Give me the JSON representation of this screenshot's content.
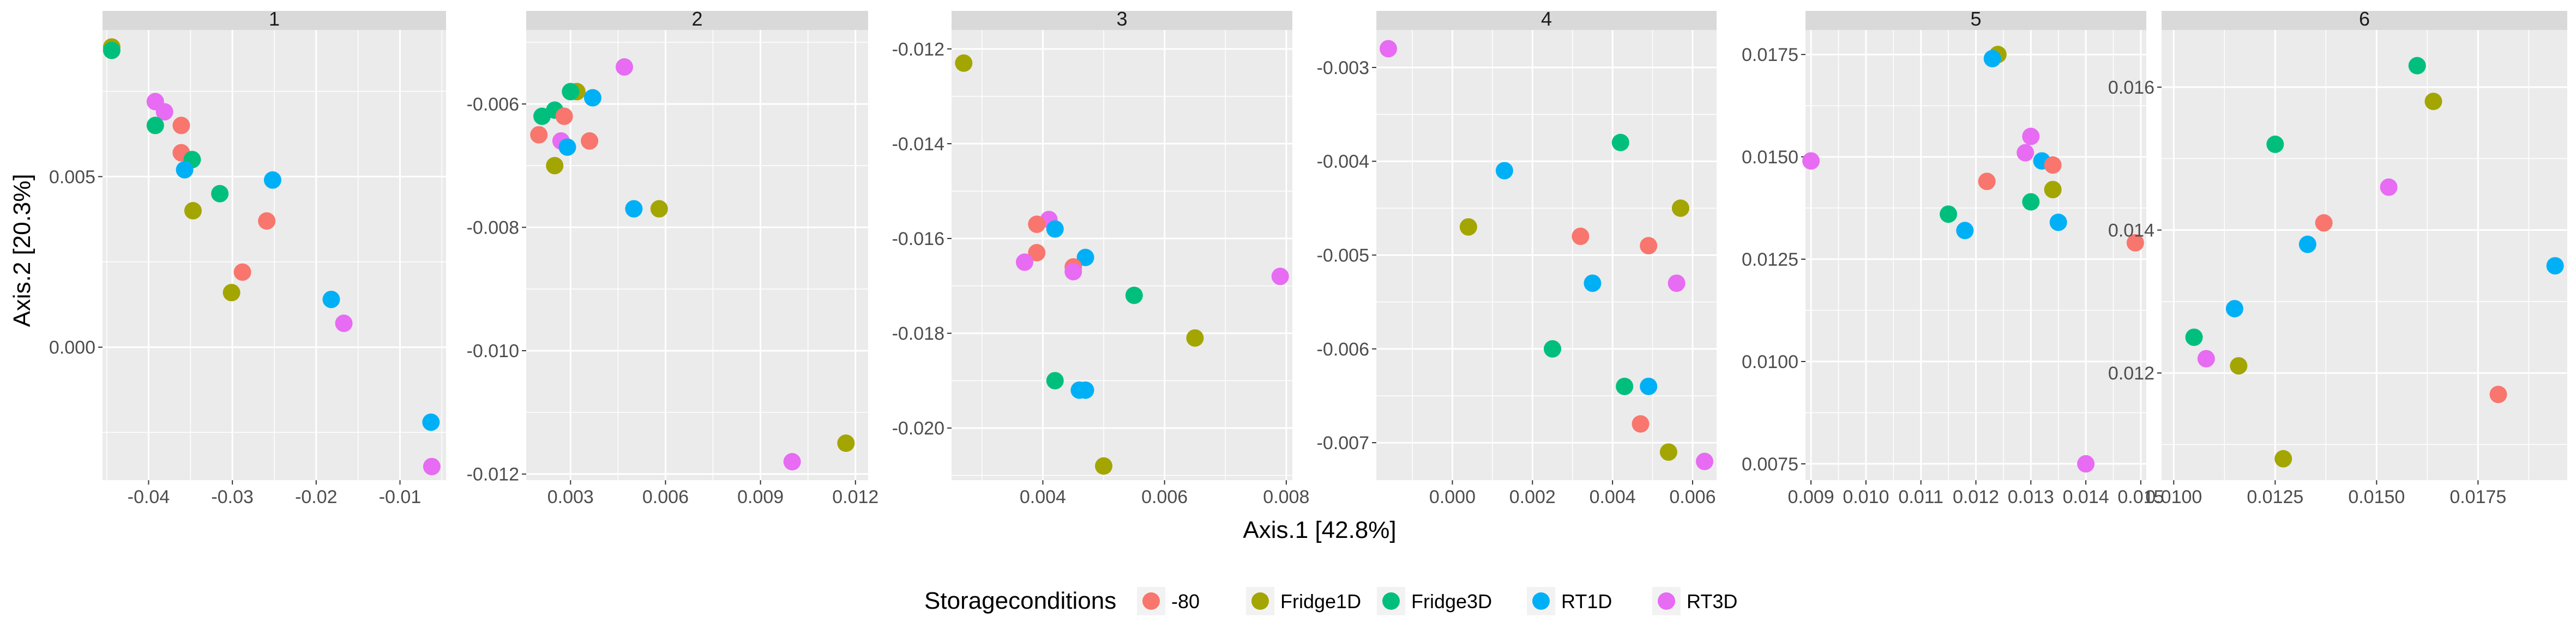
{
  "chart_data": {
    "type": "scatter",
    "xlabel": "Axis.1   [42.8%]",
    "ylabel": "Axis.2   [20.3%]",
    "legend": {
      "title": "Storageconditions",
      "placement": "bottom",
      "entries": [
        "-80",
        "Fridge1D",
        "Fridge3D",
        "RT1D",
        "RT3D"
      ]
    },
    "colors": {
      "-80": "#F8766D",
      "Fridge1D": "#A3A500",
      "Fridge3D": "#00BF7D",
      "RT1D": "#00B0F6",
      "RT3D": "#E76BF3",
      "panel_bg": "#EBEBEB",
      "strip_bg": "#D9D9D9",
      "grid": "#FFFFFF"
    },
    "grid": true,
    "facets": [
      {
        "label": "1",
        "xlim": [
          -0.0455,
          -0.0045
        ],
        "ylim": [
          -0.0039,
          0.0093
        ],
        "xticks": [
          {
            "v": -0.04,
            "t": "-0.04"
          },
          {
            "v": -0.03,
            "t": "-0.03"
          },
          {
            "v": -0.02,
            "t": "-0.02"
          },
          {
            "v": -0.01,
            "t": "-0.01"
          }
        ],
        "yticks": [
          {
            "v": 0.0,
            "t": "0.000"
          },
          {
            "v": 0.005,
            "t": "0.005"
          }
        ],
        "points": [
          {
            "x": -0.0444,
            "y": 0.0088,
            "g": "Fridge1D"
          },
          {
            "x": -0.0444,
            "y": 0.0087,
            "g": "Fridge3D"
          },
          {
            "x": -0.0392,
            "y": 0.0072,
            "g": "RT3D"
          },
          {
            "x": -0.0381,
            "y": 0.0069,
            "g": "RT3D"
          },
          {
            "x": -0.0392,
            "y": 0.0065,
            "g": "Fridge3D"
          },
          {
            "x": -0.0361,
            "y": 0.0065,
            "g": "-80"
          },
          {
            "x": -0.0361,
            "y": 0.0057,
            "g": "-80"
          },
          {
            "x": -0.0348,
            "y": 0.0055,
            "g": "Fridge3D"
          },
          {
            "x": -0.0357,
            "y": 0.0052,
            "g": "RT1D"
          },
          {
            "x": -0.0252,
            "y": 0.0049,
            "g": "RT1D"
          },
          {
            "x": -0.0315,
            "y": 0.0045,
            "g": "Fridge3D"
          },
          {
            "x": -0.0347,
            "y": 0.004,
            "g": "Fridge1D"
          },
          {
            "x": -0.0259,
            "y": 0.0037,
            "g": "-80"
          },
          {
            "x": -0.0288,
            "y": 0.0022,
            "g": "-80"
          },
          {
            "x": -0.0301,
            "y": 0.0016,
            "g": "Fridge1D"
          },
          {
            "x": -0.0182,
            "y": 0.0014,
            "g": "RT1D"
          },
          {
            "x": -0.0167,
            "y": 0.0007,
            "g": "RT3D"
          },
          {
            "x": -0.0063,
            "y": -0.0022,
            "g": "RT1D"
          },
          {
            "x": -0.0062,
            "y": -0.0035,
            "g": "RT3D"
          }
        ]
      },
      {
        "label": "2",
        "xlim": [
          0.0016,
          0.0124
        ],
        "ylim": [
          -0.0121,
          -0.0048
        ],
        "xticks": [
          {
            "v": 0.003,
            "t": "0.003"
          },
          {
            "v": 0.006,
            "t": "0.006"
          },
          {
            "v": 0.009,
            "t": "0.009"
          },
          {
            "v": 0.012,
            "t": "0.012"
          }
        ],
        "yticks": [
          {
            "v": -0.012,
            "t": "-0.012"
          },
          {
            "v": -0.01,
            "t": "-0.010"
          },
          {
            "v": -0.008,
            "t": "-0.008"
          },
          {
            "v": -0.006,
            "t": "-0.006"
          }
        ],
        "points": [
          {
            "x": 0.0047,
            "y": -0.0054,
            "g": "RT3D"
          },
          {
            "x": 0.0032,
            "y": -0.0058,
            "g": "Fridge1D"
          },
          {
            "x": 0.003,
            "y": -0.0058,
            "g": "Fridge3D"
          },
          {
            "x": 0.0037,
            "y": -0.0059,
            "g": "RT1D"
          },
          {
            "x": 0.0021,
            "y": -0.0062,
            "g": "Fridge3D"
          },
          {
            "x": 0.0025,
            "y": -0.0061,
            "g": "Fridge3D"
          },
          {
            "x": 0.0028,
            "y": -0.0062,
            "g": "-80"
          },
          {
            "x": 0.002,
            "y": -0.0065,
            "g": "-80"
          },
          {
            "x": 0.0027,
            "y": -0.0066,
            "g": "RT3D"
          },
          {
            "x": 0.0036,
            "y": -0.0066,
            "g": "-80"
          },
          {
            "x": 0.0029,
            "y": -0.0067,
            "g": "RT1D"
          },
          {
            "x": 0.0025,
            "y": -0.007,
            "g": "Fridge1D"
          },
          {
            "x": 0.005,
            "y": -0.0077,
            "g": "RT1D"
          },
          {
            "x": 0.0058,
            "y": -0.0077,
            "g": "Fridge1D"
          },
          {
            "x": 0.0117,
            "y": -0.0115,
            "g": "Fridge1D"
          },
          {
            "x": 0.01,
            "y": -0.0118,
            "g": "RT3D"
          }
        ]
      },
      {
        "label": "3",
        "xlim": [
          0.0025,
          0.0081
        ],
        "ylim": [
          -0.0211,
          -0.0116
        ],
        "xticks": [
          {
            "v": 0.004,
            "t": "0.004"
          },
          {
            "v": 0.006,
            "t": "0.006"
          },
          {
            "v": 0.008,
            "t": "0.008"
          }
        ],
        "yticks": [
          {
            "v": -0.02,
            "t": "-0.020"
          },
          {
            "v": -0.018,
            "t": "-0.018"
          },
          {
            "v": -0.016,
            "t": "-0.016"
          },
          {
            "v": -0.014,
            "t": "-0.014"
          },
          {
            "v": -0.012,
            "t": "-0.012"
          }
        ],
        "points": [
          {
            "x": 0.0027,
            "y": -0.0123,
            "g": "Fridge1D"
          },
          {
            "x": 0.0041,
            "y": -0.0156,
            "g": "RT3D"
          },
          {
            "x": 0.0039,
            "y": -0.0157,
            "g": "-80"
          },
          {
            "x": 0.0042,
            "y": -0.0158,
            "g": "RT1D"
          },
          {
            "x": 0.0039,
            "y": -0.0163,
            "g": "-80"
          },
          {
            "x": 0.0037,
            "y": -0.0165,
            "g": "RT3D"
          },
          {
            "x": 0.0047,
            "y": -0.0164,
            "g": "RT1D"
          },
          {
            "x": 0.0045,
            "y": -0.0166,
            "g": "-80"
          },
          {
            "x": 0.0045,
            "y": -0.0167,
            "g": "RT3D"
          },
          {
            "x": 0.0079,
            "y": -0.0168,
            "g": "RT3D"
          },
          {
            "x": 0.0055,
            "y": -0.0172,
            "g": "Fridge3D"
          },
          {
            "x": 0.0065,
            "y": -0.0181,
            "g": "Fridge1D"
          },
          {
            "x": 0.0042,
            "y": -0.019,
            "g": "Fridge3D"
          },
          {
            "x": 0.0046,
            "y": -0.0192,
            "g": "RT1D"
          },
          {
            "x": 0.0047,
            "y": -0.0192,
            "g": "RT1D"
          },
          {
            "x": 0.005,
            "y": -0.0208,
            "g": "Fridge1D"
          }
        ]
      },
      {
        "label": "4",
        "xlim": [
          -0.0019,
          0.0066
        ],
        "ylim": [
          -0.0074,
          -0.0026
        ],
        "xticks": [
          {
            "v": 0.0,
            "t": "0.000"
          },
          {
            "v": 0.002,
            "t": "0.002"
          },
          {
            "v": 0.004,
            "t": "0.004"
          },
          {
            "v": 0.006,
            "t": "0.006"
          }
        ],
        "yticks": [
          {
            "v": -0.007,
            "t": "-0.007"
          },
          {
            "v": -0.006,
            "t": "-0.006"
          },
          {
            "v": -0.005,
            "t": "-0.005"
          },
          {
            "v": -0.004,
            "t": "-0.004"
          },
          {
            "v": -0.003,
            "t": "-0.003"
          }
        ],
        "points": [
          {
            "x": -0.0016,
            "y": -0.0028,
            "g": "RT3D"
          },
          {
            "x": 0.0042,
            "y": -0.0038,
            "g": "Fridge3D"
          },
          {
            "x": 0.0013,
            "y": -0.0041,
            "g": "RT1D"
          },
          {
            "x": 0.0057,
            "y": -0.0045,
            "g": "Fridge1D"
          },
          {
            "x": 0.0004,
            "y": -0.0047,
            "g": "Fridge1D"
          },
          {
            "x": 0.0032,
            "y": -0.0048,
            "g": "-80"
          },
          {
            "x": 0.0049,
            "y": -0.0049,
            "g": "-80"
          },
          {
            "x": 0.0035,
            "y": -0.0053,
            "g": "RT1D"
          },
          {
            "x": 0.0056,
            "y": -0.0053,
            "g": "RT3D"
          },
          {
            "x": 0.0025,
            "y": -0.006,
            "g": "Fridge3D"
          },
          {
            "x": 0.0043,
            "y": -0.0064,
            "g": "Fridge3D"
          },
          {
            "x": 0.0049,
            "y": -0.0064,
            "g": "RT1D"
          },
          {
            "x": 0.0047,
            "y": -0.0068,
            "g": "-80"
          },
          {
            "x": 0.0054,
            "y": -0.0071,
            "g": "Fridge1D"
          },
          {
            "x": 0.0063,
            "y": -0.0072,
            "g": "RT3D"
          }
        ]
      },
      {
        "label": "5",
        "xlim": [
          0.0089,
          0.0151
        ],
        "ylim": [
          0.0071,
          0.0181
        ],
        "xticks": [
          {
            "v": 0.009,
            "t": "0.009"
          },
          {
            "v": 0.01,
            "t": "0.010"
          },
          {
            "v": 0.011,
            "t": "0.011"
          },
          {
            "v": 0.012,
            "t": "0.012"
          },
          {
            "v": 0.013,
            "t": "0.013"
          },
          {
            "v": 0.014,
            "t": "0.014"
          },
          {
            "v": 0.015,
            "t": "0.015"
          }
        ],
        "yticks": [
          {
            "v": 0.0075,
            "t": "0.0075"
          },
          {
            "v": 0.01,
            "t": "0.0100"
          },
          {
            "v": 0.0125,
            "t": "0.0125"
          },
          {
            "v": 0.015,
            "t": "0.0150"
          },
          {
            "v": 0.0175,
            "t": "0.0175"
          }
        ],
        "points": [
          {
            "x": 0.0124,
            "y": 0.0175,
            "g": "Fridge1D"
          },
          {
            "x": 0.0123,
            "y": 0.0174,
            "g": "RT1D"
          },
          {
            "x": 0.013,
            "y": 0.0155,
            "g": "RT3D"
          },
          {
            "x": 0.0129,
            "y": 0.0151,
            "g": "RT3D"
          },
          {
            "x": 0.009,
            "y": 0.0149,
            "g": "RT3D"
          },
          {
            "x": 0.0132,
            "y": 0.0149,
            "g": "RT1D"
          },
          {
            "x": 0.0134,
            "y": 0.0148,
            "g": "-80"
          },
          {
            "x": 0.0122,
            "y": 0.0144,
            "g": "-80"
          },
          {
            "x": 0.0134,
            "y": 0.0142,
            "g": "Fridge1D"
          },
          {
            "x": 0.013,
            "y": 0.0139,
            "g": "Fridge3D"
          },
          {
            "x": 0.0115,
            "y": 0.0136,
            "g": "Fridge3D"
          },
          {
            "x": 0.0135,
            "y": 0.0134,
            "g": "RT1D"
          },
          {
            "x": 0.0118,
            "y": 0.0132,
            "g": "RT1D"
          },
          {
            "x": 0.0149,
            "y": 0.0129,
            "g": "-80"
          },
          {
            "x": 0.014,
            "y": 0.0075,
            "g": "RT3D"
          }
        ]
      },
      {
        "label": "6",
        "xlim": [
          0.0097,
          0.0197
        ],
        "ylim": [
          0.0105,
          0.0168
        ],
        "xticks": [
          {
            "v": 0.01,
            "t": "0.0100"
          },
          {
            "v": 0.0125,
            "t": "0.0125"
          },
          {
            "v": 0.015,
            "t": "0.0150"
          },
          {
            "v": 0.0175,
            "t": "0.0175"
          }
        ],
        "yticks": [
          {
            "v": 0.012,
            "t": "0.012"
          },
          {
            "v": 0.014,
            "t": "0.014"
          },
          {
            "v": 0.016,
            "t": "0.016"
          }
        ],
        "points": [
          {
            "x": 0.016,
            "y": 0.0163,
            "g": "Fridge3D"
          },
          {
            "x": 0.0164,
            "y": 0.0158,
            "g": "Fridge1D"
          },
          {
            "x": 0.0125,
            "y": 0.0152,
            "g": "Fridge3D"
          },
          {
            "x": 0.0153,
            "y": 0.0146,
            "g": "RT3D"
          },
          {
            "x": 0.0137,
            "y": 0.0141,
            "g": "-80"
          },
          {
            "x": 0.0133,
            "y": 0.0138,
            "g": "RT1D"
          },
          {
            "x": 0.0194,
            "y": 0.0135,
            "g": "RT1D"
          },
          {
            "x": 0.0115,
            "y": 0.0129,
            "g": "RT1D"
          },
          {
            "x": 0.0105,
            "y": 0.0125,
            "g": "Fridge3D"
          },
          {
            "x": 0.0108,
            "y": 0.0122,
            "g": "RT3D"
          },
          {
            "x": 0.0116,
            "y": 0.0121,
            "g": "Fridge1D"
          },
          {
            "x": 0.018,
            "y": 0.0117,
            "g": "-80"
          },
          {
            "x": 0.0127,
            "y": 0.0108,
            "g": "Fridge1D"
          }
        ]
      }
    ]
  }
}
